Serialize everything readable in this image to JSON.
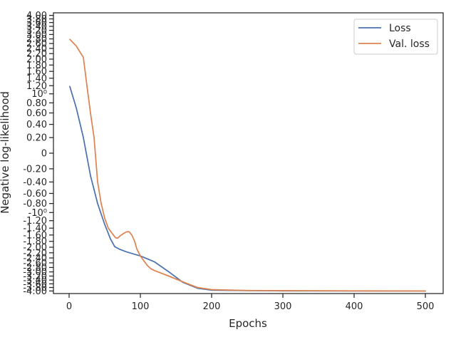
{
  "chart_data": {
    "type": "line",
    "title": "",
    "xlabel": "Epochs",
    "ylabel": "Negative log-likelihood",
    "xlim": [
      -22,
      525
    ],
    "xticks": [
      0,
      100,
      200,
      300,
      400,
      500
    ],
    "xtick_labels": [
      "0",
      "100",
      "200",
      "300",
      "400",
      "500"
    ],
    "yscale": "symlog",
    "yticks": [
      4.0,
      3.8,
      3.6,
      3.4,
      3.2,
      3.0,
      2.8,
      2.6,
      2.4,
      2.2,
      2.0,
      1.8,
      1.6,
      1.4,
      1.2,
      1.0,
      0.8,
      0.6,
      0.4,
      0.2,
      0,
      -0.2,
      -0.4,
      -0.6,
      -0.8,
      -1.0,
      -1.2,
      -1.4,
      -1.6,
      -1.8,
      -2.0,
      -2.2,
      -2.4,
      -2.6,
      -2.8,
      -3.0,
      -3.2,
      -3.4,
      -3.6,
      -3.8,
      -4.0
    ],
    "ytick_labels": [
      "4.00",
      "3.80",
      "3.60",
      "3.40",
      "3.20",
      "3.00",
      "2.80",
      "2.60",
      "2.40",
      "2.20",
      "2.00",
      "1.80",
      "1.60",
      "1.40",
      "1.20",
      "10⁰",
      "0.80",
      "0.60",
      "0.40",
      "0.20",
      "0",
      "-0.20",
      "-0.40",
      "-0.60",
      "-0.80",
      "-10⁰",
      "-1.20",
      "-1.40",
      "-1.60",
      "-1.80",
      "-2.00",
      "-2.20",
      "-2.40",
      "-2.60",
      "-2.80",
      "-3.00",
      "-3.20",
      "-3.40",
      "-3.60",
      "-3.80",
      "-4.00"
    ],
    "grid": false,
    "legend_position": "top-right",
    "series": [
      {
        "name": "Loss",
        "color": "#4c72b0",
        "x": [
          1,
          10,
          20,
          30,
          40,
          50,
          58,
          64,
          70,
          80,
          90,
          100,
          120,
          140,
          160,
          180,
          200,
          250,
          300,
          400,
          500
        ],
        "y": [
          1.18,
          0.7,
          0.2,
          -0.3,
          -0.8,
          -1.3,
          -1.72,
          -1.98,
          -2.06,
          -2.16,
          -2.24,
          -2.32,
          -2.56,
          -3.0,
          -3.53,
          -3.84,
          -3.95,
          -3.98,
          -3.99,
          -4.0,
          -4.0
        ]
      },
      {
        "name": "Val. loss",
        "color": "#dd8452",
        "x": [
          1,
          10,
          20,
          25,
          30,
          35,
          40,
          45,
          50,
          55,
          60,
          65,
          68,
          72,
          76,
          80,
          84,
          88,
          92,
          95,
          100,
          105,
          110,
          115,
          120,
          140,
          160,
          180,
          200,
          250,
          300,
          400,
          500
        ],
        "y": [
          2.78,
          2.5,
          2.06,
          1.2,
          0.6,
          0.2,
          -0.4,
          -0.8,
          -1.14,
          -1.4,
          -1.54,
          -1.68,
          -1.7,
          -1.62,
          -1.56,
          -1.51,
          -1.5,
          -1.6,
          -1.8,
          -2.06,
          -2.32,
          -2.52,
          -2.72,
          -2.86,
          -2.94,
          -3.2,
          -3.5,
          -3.8,
          -3.92,
          -3.97,
          -3.98,
          -3.99,
          -4.0
        ]
      }
    ]
  }
}
